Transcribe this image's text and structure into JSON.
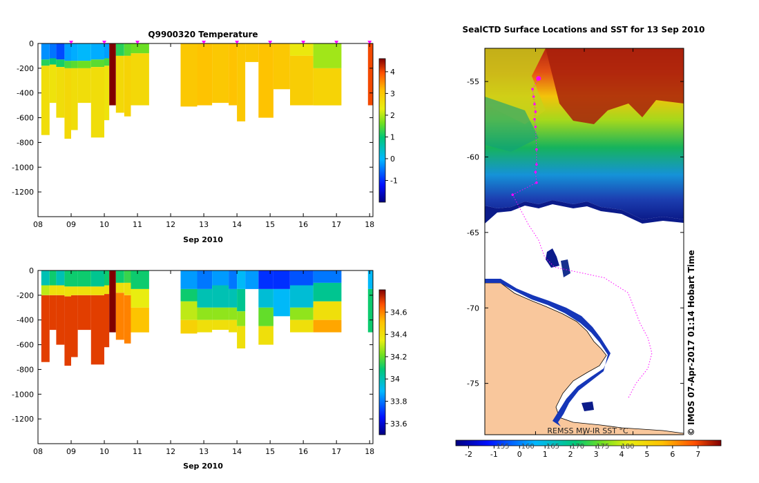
{
  "colors": {
    "land": "#f9c79c",
    "track": "#ff00ff",
    "ice": "#ffffff",
    "frame": "#000000"
  },
  "chart_data": [
    {
      "id": "temperature",
      "type": "heatmap",
      "title": "Q9900320  Temperature",
      "xlabel": "Sep 2010",
      "ylabel": "",
      "x_ticks": [
        "08",
        "09",
        "10",
        "11",
        "12",
        "13",
        "14",
        "15",
        "16",
        "17",
        "18"
      ],
      "y_ticks": [
        "0",
        "-200",
        "-400",
        "-600",
        "-800",
        "-1000",
        "-1200"
      ],
      "xlim": [
        8,
        18.1
      ],
      "ylim": [
        -1400,
        0
      ],
      "colorbar": {
        "min": -2,
        "max": 4.6,
        "ticks": [
          "-1",
          "0",
          "1",
          "2",
          "3",
          "4"
        ]
      },
      "profile_markers_day": [
        9.0,
        10.0,
        11.0,
        13.0,
        14.0,
        15.0,
        16.0,
        17.0,
        18.0
      ],
      "profiles": [
        {
          "x0": 8.1,
          "x1": 8.35,
          "bottom": -740,
          "layers": [
            [
              0,
              -130,
              -0.3
            ],
            [
              -130,
              -180,
              1.2
            ],
            [
              -180,
              -740,
              2.6
            ]
          ]
        },
        {
          "x0": 8.35,
          "x1": 8.55,
          "bottom": -480,
          "layers": [
            [
              0,
              -120,
              -0.5
            ],
            [
              -120,
              -170,
              1.0
            ],
            [
              -170,
              -480,
              2.5
            ]
          ]
        },
        {
          "x0": 8.55,
          "x1": 8.8,
          "bottom": -600,
          "layers": [
            [
              0,
              -130,
              -0.8
            ],
            [
              -130,
              -190,
              1.1
            ],
            [
              -190,
              -600,
              2.6
            ]
          ]
        },
        {
          "x0": 8.8,
          "x1": 9.0,
          "bottom": -770,
          "layers": [
            [
              0,
              -140,
              -0.2
            ],
            [
              -140,
              -200,
              1.4
            ],
            [
              -200,
              -770,
              2.7
            ]
          ]
        },
        {
          "x0": 9.0,
          "x1": 9.2,
          "bottom": -700,
          "layers": [
            [
              0,
              -140,
              -0.1
            ],
            [
              -140,
              -200,
              1.5
            ],
            [
              -200,
              -700,
              2.6
            ]
          ]
        },
        {
          "x0": 9.2,
          "x1": 9.6,
          "bottom": -480,
          "layers": [
            [
              0,
              -140,
              0.0
            ],
            [
              -140,
              -200,
              1.6
            ],
            [
              -200,
              -480,
              2.6
            ]
          ]
        },
        {
          "x0": 9.6,
          "x1": 10.0,
          "bottom": -760,
          "layers": [
            [
              0,
              -130,
              -0.1
            ],
            [
              -130,
              -190,
              1.5
            ],
            [
              -190,
              -760,
              2.6
            ]
          ]
        },
        {
          "x0": 10.0,
          "x1": 10.15,
          "bottom": -620,
          "layers": [
            [
              0,
              -120,
              -0.2
            ],
            [
              -120,
              -180,
              1.4
            ],
            [
              -180,
              -620,
              2.5
            ]
          ]
        },
        {
          "x0": 10.15,
          "x1": 10.35,
          "bottom": -500,
          "layers": [
            [
              0,
              -500,
              4.6
            ]
          ]
        },
        {
          "x0": 10.35,
          "x1": 10.6,
          "bottom": -560,
          "layers": [
            [
              0,
              -100,
              1.2
            ],
            [
              -100,
              -560,
              2.7
            ]
          ]
        },
        {
          "x0": 10.6,
          "x1": 10.8,
          "bottom": -590,
          "layers": [
            [
              0,
              -100,
              1.5
            ],
            [
              -100,
              -590,
              2.8
            ]
          ]
        },
        {
          "x0": 10.8,
          "x1": 11.35,
          "bottom": -500,
          "layers": [
            [
              0,
              -80,
              1.6
            ],
            [
              -80,
              -500,
              2.7
            ]
          ]
        },
        {
          "x0": 12.3,
          "x1": 12.8,
          "bottom": -510,
          "layers": [
            [
              0,
              -510,
              3.0
            ]
          ]
        },
        {
          "x0": 12.8,
          "x1": 13.25,
          "bottom": -500,
          "layers": [
            [
              0,
              -500,
              3.1
            ]
          ]
        },
        {
          "x0": 13.25,
          "x1": 13.75,
          "bottom": -480,
          "layers": [
            [
              0,
              -480,
              3.0
            ]
          ]
        },
        {
          "x0": 13.75,
          "x1": 14.0,
          "bottom": -500,
          "layers": [
            [
              0,
              -500,
              3.1
            ]
          ]
        },
        {
          "x0": 14.0,
          "x1": 14.25,
          "bottom": -630,
          "layers": [
            [
              0,
              -630,
              3.0
            ]
          ]
        },
        {
          "x0": 14.25,
          "x1": 14.65,
          "bottom": -150,
          "layers": [
            [
              0,
              -150,
              3.0
            ]
          ]
        },
        {
          "x0": 14.65,
          "x1": 15.1,
          "bottom": -600,
          "layers": [
            [
              0,
              -600,
              3.1
            ]
          ]
        },
        {
          "x0": 15.1,
          "x1": 15.6,
          "bottom": -370,
          "layers": [
            [
              0,
              -370,
              3.0
            ]
          ]
        },
        {
          "x0": 15.6,
          "x1": 16.3,
          "bottom": -500,
          "layers": [
            [
              0,
              -100,
              2.4
            ],
            [
              -100,
              -500,
              2.9
            ]
          ]
        },
        {
          "x0": 16.3,
          "x1": 17.15,
          "bottom": -500,
          "layers": [
            [
              0,
              -200,
              1.9
            ],
            [
              -200,
              -500,
              2.8
            ]
          ]
        },
        {
          "x0": 17.95,
          "x1": 18.1,
          "bottom": -500,
          "layers": [
            [
              0,
              -500,
              4.0
            ]
          ]
        }
      ]
    },
    {
      "id": "salinity",
      "type": "heatmap",
      "title": "",
      "xlabel": "Sep 2010",
      "ylabel": "",
      "x_ticks": [
        "08",
        "09",
        "10",
        "11",
        "12",
        "13",
        "14",
        "15",
        "16",
        "17",
        "18"
      ],
      "y_ticks": [
        "0",
        "-200",
        "-400",
        "-600",
        "-800",
        "-1000",
        "-1200"
      ],
      "xlim": [
        8,
        18.1
      ],
      "ylim": [
        -1400,
        0
      ],
      "colorbar": {
        "min": 33.5,
        "max": 34.8,
        "ticks": [
          "33.6",
          "33.8",
          "34",
          "34.2",
          "34.4",
          "34.6"
        ]
      },
      "profiles": [
        {
          "x0": 8.1,
          "x1": 8.35,
          "bottom": -740,
          "layers": [
            [
              0,
              -120,
              34.0
            ],
            [
              -120,
              -200,
              34.3
            ],
            [
              -200,
              -740,
              34.7
            ]
          ]
        },
        {
          "x0": 8.35,
          "x1": 8.55,
          "bottom": -480,
          "layers": [
            [
              0,
              -120,
              34.1
            ],
            [
              -120,
              -200,
              34.4
            ],
            [
              -200,
              -480,
              34.7
            ]
          ]
        },
        {
          "x0": 8.55,
          "x1": 8.8,
          "bottom": -600,
          "layers": [
            [
              0,
              -120,
              34.0
            ],
            [
              -120,
              -200,
              34.4
            ],
            [
              -200,
              -600,
              34.7
            ]
          ]
        },
        {
          "x0": 8.8,
          "x1": 9.0,
          "bottom": -770,
          "layers": [
            [
              0,
              -130,
              34.1
            ],
            [
              -130,
              -210,
              34.4
            ],
            [
              -210,
              -770,
              34.7
            ]
          ]
        },
        {
          "x0": 9.0,
          "x1": 9.2,
          "bottom": -700,
          "layers": [
            [
              0,
              -130,
              34.1
            ],
            [
              -130,
              -200,
              34.4
            ],
            [
              -200,
              -700,
              34.7
            ]
          ]
        },
        {
          "x0": 9.2,
          "x1": 9.6,
          "bottom": -480,
          "layers": [
            [
              0,
              -130,
              34.1
            ],
            [
              -130,
              -200,
              34.4
            ],
            [
              -200,
              -480,
              34.7
            ]
          ]
        },
        {
          "x0": 9.6,
          "x1": 10.0,
          "bottom": -760,
          "layers": [
            [
              0,
              -130,
              34.05
            ],
            [
              -130,
              -200,
              34.4
            ],
            [
              -200,
              -760,
              34.7
            ]
          ]
        },
        {
          "x0": 10.0,
          "x1": 10.15,
          "bottom": -620,
          "layers": [
            [
              0,
              -120,
              34.1
            ],
            [
              -120,
              -190,
              34.4
            ],
            [
              -190,
              -620,
              34.7
            ]
          ]
        },
        {
          "x0": 10.15,
          "x1": 10.35,
          "bottom": -500,
          "layers": [
            [
              0,
              -500,
              34.8
            ]
          ]
        },
        {
          "x0": 10.35,
          "x1": 10.6,
          "bottom": -560,
          "layers": [
            [
              0,
              -100,
              34.1
            ],
            [
              -100,
              -180,
              34.4
            ],
            [
              -180,
              -560,
              34.6
            ]
          ]
        },
        {
          "x0": 10.6,
          "x1": 10.8,
          "bottom": -590,
          "layers": [
            [
              0,
              -100,
              34.15
            ],
            [
              -100,
              -200,
              34.4
            ],
            [
              -200,
              -590,
              34.6
            ]
          ]
        },
        {
          "x0": 10.8,
          "x1": 11.35,
          "bottom": -500,
          "layers": [
            [
              0,
              -150,
              34.1
            ],
            [
              -150,
              -300,
              34.35
            ],
            [
              -300,
              -500,
              34.5
            ]
          ]
        },
        {
          "x0": 12.3,
          "x1": 12.8,
          "bottom": -510,
          "layers": [
            [
              0,
              -150,
              33.85
            ],
            [
              -150,
              -250,
              34.1
            ],
            [
              -250,
              -400,
              34.3
            ],
            [
              -400,
              -510,
              34.45
            ]
          ]
        },
        {
          "x0": 12.8,
          "x1": 13.25,
          "bottom": -500,
          "layers": [
            [
              0,
              -150,
              33.8
            ],
            [
              -150,
              -300,
              34.0
            ],
            [
              -300,
              -400,
              34.25
            ],
            [
              -400,
              -500,
              34.4
            ]
          ]
        },
        {
          "x0": 13.25,
          "x1": 13.75,
          "bottom": -480,
          "layers": [
            [
              0,
              -120,
              33.85
            ],
            [
              -120,
              -300,
              34.0
            ],
            [
              -300,
              -400,
              34.25
            ],
            [
              -400,
              -480,
              34.4
            ]
          ]
        },
        {
          "x0": 13.75,
          "x1": 14.0,
          "bottom": -500,
          "layers": [
            [
              0,
              -150,
              33.8
            ],
            [
              -150,
              -300,
              34.0
            ],
            [
              -300,
              -400,
              34.25
            ],
            [
              -400,
              -500,
              34.4
            ]
          ]
        },
        {
          "x0": 14.0,
          "x1": 14.25,
          "bottom": -630,
          "layers": [
            [
              0,
              -150,
              33.9
            ],
            [
              -150,
              -330,
              34.05
            ],
            [
              -330,
              -450,
              34.25
            ],
            [
              -450,
              -630,
              34.4
            ]
          ]
        },
        {
          "x0": 14.25,
          "x1": 14.65,
          "bottom": -150,
          "layers": [
            [
              0,
              -150,
              33.85
            ]
          ]
        },
        {
          "x0": 14.65,
          "x1": 15.1,
          "bottom": -600,
          "layers": [
            [
              0,
              -150,
              33.7
            ],
            [
              -150,
              -300,
              33.95
            ],
            [
              -300,
              -450,
              34.2
            ],
            [
              -450,
              -600,
              34.4
            ]
          ]
        },
        {
          "x0": 15.1,
          "x1": 15.6,
          "bottom": -370,
          "layers": [
            [
              0,
              -150,
              33.7
            ],
            [
              -150,
              -370,
              33.9
            ]
          ]
        },
        {
          "x0": 15.6,
          "x1": 16.3,
          "bottom": -500,
          "layers": [
            [
              0,
              -120,
              33.75
            ],
            [
              -120,
              -300,
              33.95
            ],
            [
              -300,
              -400,
              34.25
            ],
            [
              -400,
              -500,
              34.4
            ]
          ]
        },
        {
          "x0": 16.3,
          "x1": 17.15,
          "bottom": -500,
          "layers": [
            [
              0,
              -100,
              33.8
            ],
            [
              -100,
              -250,
              34.05
            ],
            [
              -250,
              -400,
              34.4
            ],
            [
              -400,
              -500,
              34.55
            ]
          ]
        },
        {
          "x0": 17.95,
          "x1": 18.1,
          "bottom": -500,
          "layers": [
            [
              0,
              -150,
              33.9
            ],
            [
              -150,
              -500,
              34.1
            ]
          ]
        }
      ]
    },
    {
      "id": "sst-map",
      "type": "heatmap",
      "title": "SealCTD Surface Locations and SST for 13 Sep 2010",
      "xlabel": "",
      "ylabel": "",
      "y_ticks": [
        "-55",
        "-60",
        "-65",
        "-70",
        "-75"
      ],
      "ylim": [
        -78.4,
        -52.8
      ],
      "colorbar": {
        "label": "REMSS MW-IR SST °C",
        "min": -2.5,
        "max": 7.9,
        "ticks": [
          "-2",
          "-1",
          "0",
          "1",
          "2",
          "3",
          "4",
          "5",
          "6",
          "7"
        ],
        "kelvin_ticks": [
          "155",
          "160",
          "165",
          "170",
          "175",
          "180"
        ]
      },
      "side_text": "© IMOS 07-Apr-2017 01:14 Hobart Time",
      "latest_position": {
        "lat": -54.8,
        "lon_frac": 0.27
      },
      "track_points": [
        [
          -54.8,
          0.27
        ],
        [
          -55.5,
          0.24
        ],
        [
          -56.0,
          0.245
        ],
        [
          -56.5,
          0.25
        ],
        [
          -57.0,
          0.255
        ],
        [
          -57.5,
          0.25
        ],
        [
          -58.0,
          0.255
        ],
        [
          -59.5,
          0.26
        ],
        [
          -60.5,
          0.26
        ],
        [
          -61.0,
          0.255
        ],
        [
          -61.7,
          0.26
        ],
        [
          -62.5,
          0.14
        ],
        [
          -64.5,
          0.22
        ],
        [
          -65.5,
          0.27
        ],
        [
          -66.6,
          0.3
        ],
        [
          -67.3,
          0.35
        ],
        [
          -68.0,
          0.6
        ],
        [
          -69.0,
          0.72
        ],
        [
          -70.0,
          0.75
        ],
        [
          -71.0,
          0.78
        ],
        [
          -72.0,
          0.82
        ],
        [
          -73.0,
          0.84
        ],
        [
          -74.0,
          0.82
        ],
        [
          -75.0,
          0.76
        ],
        [
          -76.0,
          0.72
        ]
      ]
    }
  ]
}
